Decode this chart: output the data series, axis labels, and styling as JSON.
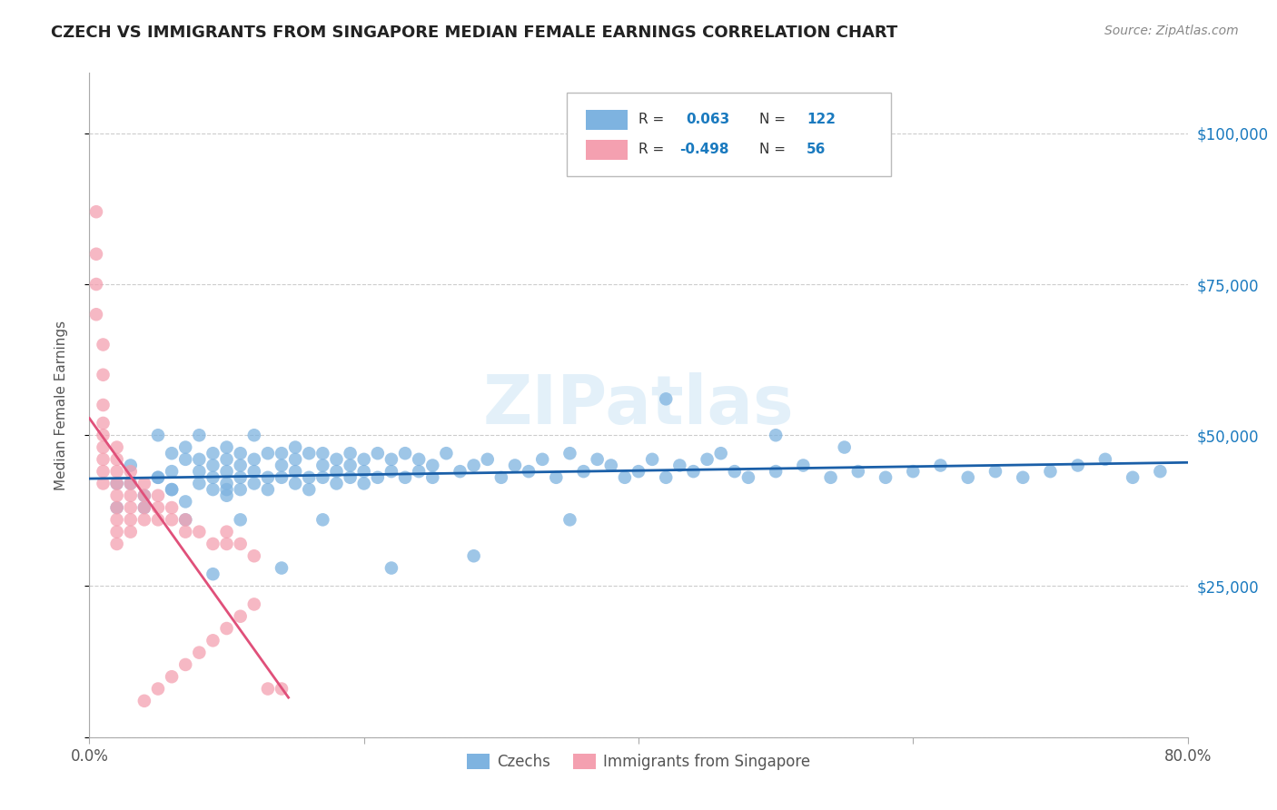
{
  "title": "CZECH VS IMMIGRANTS FROM SINGAPORE MEDIAN FEMALE EARNINGS CORRELATION CHART",
  "source": "Source: ZipAtlas.com",
  "ylabel": "Median Female Earnings",
  "xlim": [
    0.0,
    0.8
  ],
  "ylim": [
    0,
    110000
  ],
  "yticks": [
    0,
    25000,
    50000,
    75000,
    100000
  ],
  "ytick_labels": [
    "",
    "$25,000",
    "$50,000",
    "$75,000",
    "$100,000"
  ],
  "xticks": [
    0.0,
    0.2,
    0.4,
    0.6,
    0.8
  ],
  "xtick_labels": [
    "0.0%",
    "",
    "",
    "",
    "80.0%"
  ],
  "blue_color": "#7eb3e0",
  "pink_color": "#f4a0b0",
  "line_blue": "#1a5fa8",
  "line_pink": "#e0507a",
  "watermark": "ZIPatlas",
  "legend_label1": "Czechs",
  "legend_label2": "Immigrants from Singapore",
  "title_color": "#222222",
  "tick_color_y_right": "#1a7abf",
  "background_color": "#ffffff",
  "grid_color": "#cccccc",
  "blue_scatter_x": [
    0.02,
    0.03,
    0.04,
    0.05,
    0.05,
    0.06,
    0.06,
    0.06,
    0.07,
    0.07,
    0.07,
    0.08,
    0.08,
    0.08,
    0.08,
    0.09,
    0.09,
    0.09,
    0.09,
    0.1,
    0.1,
    0.1,
    0.1,
    0.1,
    0.11,
    0.11,
    0.11,
    0.11,
    0.12,
    0.12,
    0.12,
    0.12,
    0.13,
    0.13,
    0.13,
    0.14,
    0.14,
    0.14,
    0.15,
    0.15,
    0.15,
    0.15,
    0.16,
    0.16,
    0.16,
    0.17,
    0.17,
    0.17,
    0.18,
    0.18,
    0.18,
    0.19,
    0.19,
    0.19,
    0.2,
    0.2,
    0.2,
    0.21,
    0.21,
    0.22,
    0.22,
    0.23,
    0.23,
    0.24,
    0.24,
    0.25,
    0.25,
    0.26,
    0.27,
    0.28,
    0.29,
    0.3,
    0.31,
    0.32,
    0.33,
    0.34,
    0.35,
    0.36,
    0.37,
    0.38,
    0.39,
    0.4,
    0.41,
    0.42,
    0.43,
    0.44,
    0.45,
    0.46,
    0.47,
    0.48,
    0.5,
    0.52,
    0.54,
    0.56,
    0.58,
    0.6,
    0.62,
    0.64,
    0.66,
    0.68,
    0.7,
    0.72,
    0.74,
    0.76,
    0.78,
    0.5,
    0.55,
    0.42,
    0.35,
    0.28,
    0.22,
    0.17,
    0.14,
    0.11,
    0.09,
    0.07,
    0.06,
    0.05,
    0.04,
    0.03,
    0.02,
    0.1
  ],
  "blue_scatter_y": [
    42000,
    45000,
    38000,
    50000,
    43000,
    47000,
    44000,
    41000,
    48000,
    39000,
    46000,
    50000,
    42000,
    44000,
    46000,
    43000,
    47000,
    41000,
    45000,
    44000,
    46000,
    42000,
    48000,
    40000,
    45000,
    43000,
    47000,
    41000,
    50000,
    42000,
    44000,
    46000,
    43000,
    47000,
    41000,
    45000,
    43000,
    47000,
    44000,
    46000,
    42000,
    48000,
    43000,
    47000,
    41000,
    45000,
    43000,
    47000,
    44000,
    46000,
    42000,
    45000,
    43000,
    47000,
    44000,
    46000,
    42000,
    43000,
    47000,
    44000,
    46000,
    43000,
    47000,
    44000,
    46000,
    45000,
    43000,
    47000,
    44000,
    45000,
    46000,
    43000,
    45000,
    44000,
    46000,
    43000,
    47000,
    44000,
    46000,
    45000,
    43000,
    44000,
    46000,
    43000,
    45000,
    44000,
    46000,
    47000,
    44000,
    43000,
    44000,
    45000,
    43000,
    44000,
    43000,
    44000,
    45000,
    43000,
    44000,
    43000,
    44000,
    45000,
    46000,
    43000,
    44000,
    50000,
    48000,
    56000,
    36000,
    30000,
    28000,
    36000,
    28000,
    36000,
    27000,
    36000,
    41000,
    43000,
    40000,
    42000,
    38000,
    41000
  ],
  "pink_scatter_x": [
    0.005,
    0.005,
    0.005,
    0.005,
    0.01,
    0.01,
    0.01,
    0.01,
    0.01,
    0.01,
    0.01,
    0.01,
    0.01,
    0.02,
    0.02,
    0.02,
    0.02,
    0.02,
    0.02,
    0.02,
    0.02,
    0.02,
    0.03,
    0.03,
    0.03,
    0.03,
    0.03,
    0.03,
    0.04,
    0.04,
    0.04,
    0.04,
    0.04,
    0.05,
    0.05,
    0.05,
    0.05,
    0.06,
    0.06,
    0.06,
    0.07,
    0.07,
    0.07,
    0.08,
    0.08,
    0.09,
    0.09,
    0.1,
    0.1,
    0.1,
    0.11,
    0.11,
    0.12,
    0.12,
    0.13,
    0.14
  ],
  "pink_scatter_y": [
    87000,
    80000,
    75000,
    70000,
    65000,
    60000,
    55000,
    52000,
    50000,
    48000,
    46000,
    44000,
    42000,
    48000,
    46000,
    44000,
    42000,
    40000,
    38000,
    36000,
    34000,
    32000,
    44000,
    42000,
    40000,
    38000,
    36000,
    34000,
    42000,
    40000,
    38000,
    36000,
    6000,
    40000,
    38000,
    36000,
    8000,
    38000,
    36000,
    10000,
    36000,
    34000,
    12000,
    34000,
    14000,
    32000,
    16000,
    34000,
    32000,
    18000,
    32000,
    20000,
    30000,
    22000,
    8000,
    8000
  ]
}
